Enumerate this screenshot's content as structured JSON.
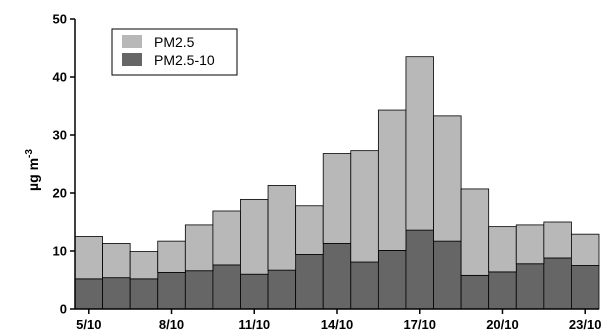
{
  "chart_data": {
    "type": "bar",
    "stacked": true,
    "title": "",
    "xlabel": "",
    "ylabel": "µg m",
    "ylabel_superscript": "-3",
    "ylim": [
      0,
      50
    ],
    "yticks": [
      "0",
      "10",
      "20",
      "30",
      "40",
      "50"
    ],
    "categories": [
      "5/10",
      "6/10",
      "7/10",
      "8/10",
      "9/10",
      "10/10",
      "11/10",
      "12/10",
      "13/10",
      "14/10",
      "15/10",
      "16/10",
      "17/10",
      "18/10",
      "19/10",
      "20/10",
      "21/10",
      "22/10",
      "23/10"
    ],
    "xtick_labels": [
      "5/10",
      "8/10",
      "11/10",
      "14/10",
      "17/10",
      "20/10",
      "23/10"
    ],
    "series": [
      {
        "name": "PM2.5-10",
        "color": "#666666",
        "values": [
          5.2,
          5.4,
          5.2,
          6.3,
          6.6,
          7.6,
          6.0,
          6.7,
          9.4,
          11.3,
          8.1,
          10.1,
          13.6,
          11.7,
          5.8,
          6.4,
          7.8,
          8.8,
          7.5
        ]
      },
      {
        "name": "PM2.5",
        "color": "#b8b8b8",
        "values": [
          7.3,
          5.9,
          4.7,
          5.4,
          7.9,
          9.3,
          12.9,
          14.6,
          8.4,
          15.5,
          19.2,
          24.2,
          29.9,
          21.6,
          14.9,
          7.8,
          6.7,
          6.2,
          5.4
        ]
      }
    ],
    "legend": {
      "position": "top-left",
      "entries": [
        {
          "name": "PM2.5",
          "color": "#b8b8b8"
        },
        {
          "name": "PM2.5-10",
          "color": "#666666"
        }
      ]
    },
    "grid": false
  }
}
